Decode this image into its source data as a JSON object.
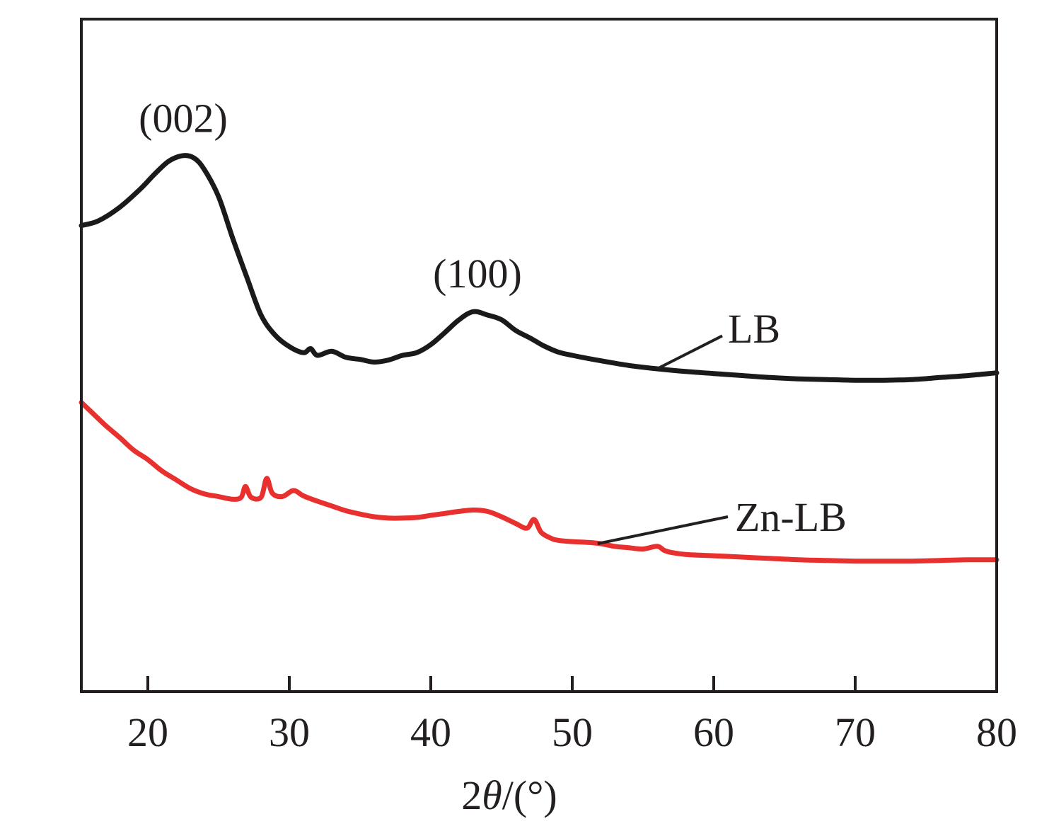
{
  "chart_data": {
    "type": "line",
    "xlabel_prefix": "2",
    "xlabel_theta": "θ",
    "xlabel_suffix": "/(°)",
    "ylabel": "",
    "xlim": [
      15.3,
      80
    ],
    "ylim": [
      0,
      100
    ],
    "x_ticks": [
      20,
      30,
      40,
      50,
      60,
      70,
      80
    ],
    "y_ticks_visible": false,
    "grid": false,
    "series": [
      {
        "name": "LB",
        "color": "#1a1a1a",
        "points": [
          [
            15.3,
            69.3
          ],
          [
            16.5,
            70.0
          ],
          [
            18.0,
            72.0
          ],
          [
            19.5,
            74.8
          ],
          [
            20.5,
            77.0
          ],
          [
            21.5,
            78.9
          ],
          [
            22.5,
            79.7
          ],
          [
            23.3,
            79.3
          ],
          [
            24.0,
            77.6
          ],
          [
            25.0,
            73.6
          ],
          [
            26.0,
            67.4
          ],
          [
            27.0,
            61.6
          ],
          [
            28.0,
            56.0
          ],
          [
            29.0,
            53.0
          ],
          [
            30.0,
            51.3
          ],
          [
            31.0,
            50.4
          ],
          [
            31.5,
            51.0
          ],
          [
            32.0,
            50.0
          ],
          [
            33.0,
            50.6
          ],
          [
            34.0,
            49.7
          ],
          [
            35.0,
            49.4
          ],
          [
            36.0,
            49.0
          ],
          [
            37.0,
            49.3
          ],
          [
            38.0,
            50.0
          ],
          [
            39.0,
            50.4
          ],
          [
            40.0,
            51.6
          ],
          [
            41.0,
            53.4
          ],
          [
            42.0,
            55.3
          ],
          [
            43.0,
            56.5
          ],
          [
            44.0,
            56.0
          ],
          [
            45.0,
            55.3
          ],
          [
            46.0,
            53.7
          ],
          [
            47.0,
            52.6
          ],
          [
            48.0,
            51.4
          ],
          [
            49.0,
            50.5
          ],
          [
            50.0,
            50.0
          ],
          [
            52.0,
            49.2
          ],
          [
            54.0,
            48.5
          ],
          [
            56.0,
            48.0
          ],
          [
            58.0,
            47.6
          ],
          [
            60.0,
            47.3
          ],
          [
            62.0,
            47.0
          ],
          [
            64.0,
            46.7
          ],
          [
            66.0,
            46.5
          ],
          [
            68.0,
            46.4
          ],
          [
            70.0,
            46.3
          ],
          [
            72.0,
            46.3
          ],
          [
            74.0,
            46.4
          ],
          [
            76.0,
            46.7
          ],
          [
            78.0,
            47.0
          ],
          [
            80.0,
            47.4
          ]
        ]
      },
      {
        "name": "Zn-LB",
        "color": "#e8302f",
        "points": [
          [
            15.3,
            43.0
          ],
          [
            16.0,
            41.6
          ],
          [
            17.0,
            39.6
          ],
          [
            18.0,
            37.8
          ],
          [
            19.0,
            35.9
          ],
          [
            20.0,
            34.5
          ],
          [
            21.0,
            32.8
          ],
          [
            22.0,
            31.5
          ],
          [
            23.0,
            30.2
          ],
          [
            24.0,
            29.4
          ],
          [
            25.0,
            29.0
          ],
          [
            26.0,
            28.6
          ],
          [
            26.6,
            28.9
          ],
          [
            26.9,
            30.5
          ],
          [
            27.3,
            28.9
          ],
          [
            28.0,
            28.9
          ],
          [
            28.4,
            31.7
          ],
          [
            28.8,
            29.5
          ],
          [
            29.5,
            29.0
          ],
          [
            30.3,
            29.9
          ],
          [
            31.0,
            29.1
          ],
          [
            32.0,
            28.3
          ],
          [
            33.0,
            27.6
          ],
          [
            34.0,
            26.9
          ],
          [
            35.0,
            26.4
          ],
          [
            36.0,
            26.0
          ],
          [
            37.0,
            25.8
          ],
          [
            38.0,
            25.8
          ],
          [
            39.0,
            25.9
          ],
          [
            40.0,
            26.2
          ],
          [
            41.0,
            26.5
          ],
          [
            42.0,
            26.8
          ],
          [
            43.0,
            27.0
          ],
          [
            44.0,
            26.8
          ],
          [
            45.0,
            26.0
          ],
          [
            46.0,
            25.0
          ],
          [
            46.8,
            24.3
          ],
          [
            47.3,
            25.6
          ],
          [
            47.8,
            23.7
          ],
          [
            48.5,
            22.8
          ],
          [
            49.0,
            22.5
          ],
          [
            50.0,
            22.3
          ],
          [
            51.0,
            22.2
          ],
          [
            52.0,
            22.0
          ],
          [
            53.0,
            21.6
          ],
          [
            54.0,
            21.4
          ],
          [
            55.0,
            21.2
          ],
          [
            56.0,
            21.6
          ],
          [
            56.5,
            21.0
          ],
          [
            57.0,
            20.7
          ],
          [
            58.0,
            20.4
          ],
          [
            60.0,
            20.2
          ],
          [
            62.0,
            20.0
          ],
          [
            64.0,
            19.8
          ],
          [
            66.0,
            19.6
          ],
          [
            68.0,
            19.5
          ],
          [
            70.0,
            19.4
          ],
          [
            72.0,
            19.4
          ],
          [
            74.0,
            19.4
          ],
          [
            76.0,
            19.5
          ],
          [
            78.0,
            19.6
          ],
          [
            80.0,
            19.6
          ]
        ]
      }
    ],
    "annotations": [
      {
        "text": "(002)",
        "x": 22.5,
        "y": 83.2,
        "anchor": "middle"
      },
      {
        "text": "(100)",
        "x": 43.3,
        "y": 60.1,
        "anchor": "middle"
      }
    ],
    "series_labels": [
      {
        "text": "LB",
        "label_x": 61.0,
        "label_y": 54.0,
        "line_from": [
          60.6,
          52.9
        ],
        "line_to": [
          56.0,
          48.0
        ]
      },
      {
        "text": "Zn-LB",
        "label_x": 61.5,
        "label_y": 26.0,
        "line_from": [
          61.0,
          26.0
        ],
        "line_to": [
          51.8,
          22.0
        ]
      }
    ]
  }
}
